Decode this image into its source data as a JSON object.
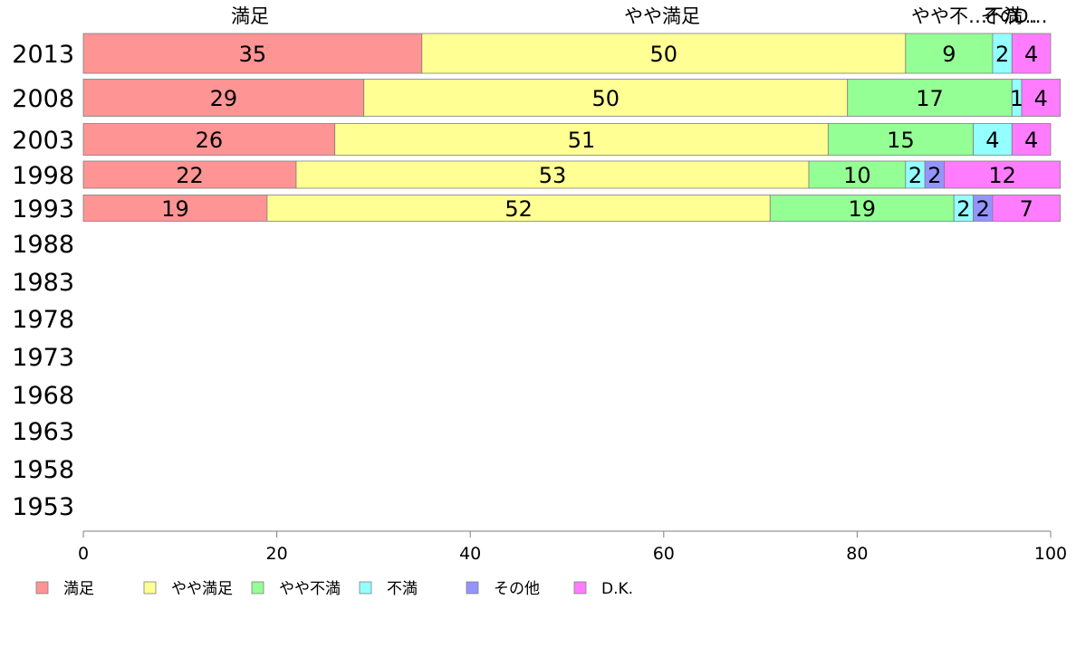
{
  "chart_data": {
    "type": "bar",
    "orientation": "horizontal",
    "stacked": true,
    "categories": [
      "2013",
      "2008",
      "2003",
      "1998",
      "1993",
      "1988",
      "1983",
      "1978",
      "1973",
      "1968",
      "1963",
      "1958",
      "1953"
    ],
    "series": [
      {
        "name": "満足",
        "color": "#ff9494",
        "values": [
          35,
          29,
          26,
          22,
          19,
          null,
          null,
          null,
          null,
          null,
          null,
          null,
          null
        ]
      },
      {
        "name": "やや満足",
        "color": "#ffff94",
        "values": [
          50,
          50,
          51,
          53,
          52,
          null,
          null,
          null,
          null,
          null,
          null,
          null,
          null
        ]
      },
      {
        "name": "やや不満",
        "color": "#94ff94",
        "values": [
          9,
          17,
          15,
          10,
          19,
          null,
          null,
          null,
          null,
          null,
          null,
          null,
          null
        ]
      },
      {
        "name": "不満",
        "color": "#94ffff",
        "values": [
          2,
          1,
          4,
          2,
          2,
          null,
          null,
          null,
          null,
          null,
          null,
          null,
          null
        ]
      },
      {
        "name": "その他",
        "color": "#9494ff",
        "values": [
          0,
          0,
          0,
          2,
          2,
          null,
          null,
          null,
          null,
          null,
          null,
          null,
          null
        ]
      },
      {
        "name": "D.K.",
        "color": "#ff7cff",
        "values": [
          4,
          4,
          4,
          12,
          7,
          null,
          null,
          null,
          null,
          null,
          null,
          null,
          null
        ]
      }
    ],
    "top_labels": [
      "満足",
      "やや満足",
      "やや不…",
      "不満",
      "その…",
      "D…"
    ],
    "xlim": [
      0,
      100
    ],
    "xticks": [
      "0",
      "20",
      "40",
      "60",
      "80",
      "100"
    ],
    "legend_position": "bottom-left",
    "grid": false
  }
}
